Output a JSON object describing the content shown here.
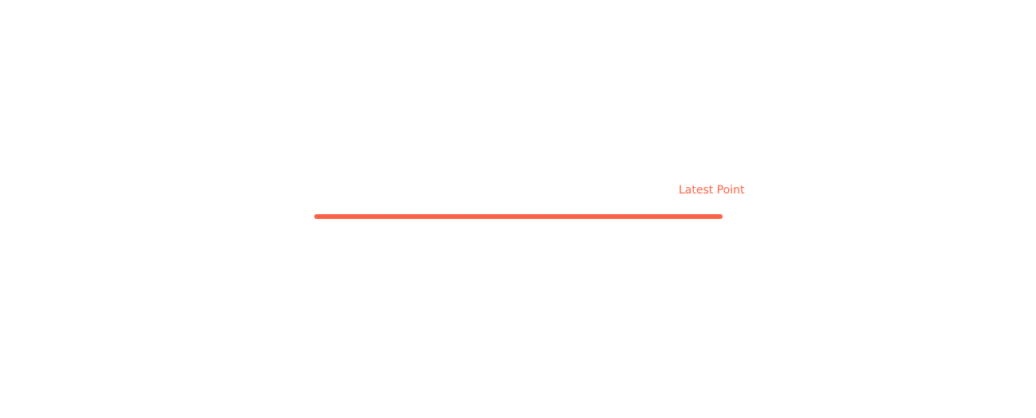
{
  "chart_data": {
    "type": "line",
    "title": "",
    "xlabel": "",
    "ylabel": "",
    "x": [
      0,
      1
    ],
    "series": [
      {
        "values": [
          0,
          0
        ]
      }
    ],
    "xlim": [
      0,
      1
    ],
    "ylim": [
      -1,
      1
    ],
    "grid": false,
    "axes_visible": false,
    "annotations": [
      {
        "text": "Latest Point",
        "x": 1,
        "y": 0
      }
    ],
    "colors": {
      "line": "#ff6347",
      "annotation": "#ff6347",
      "background": "#ffffff"
    }
  }
}
